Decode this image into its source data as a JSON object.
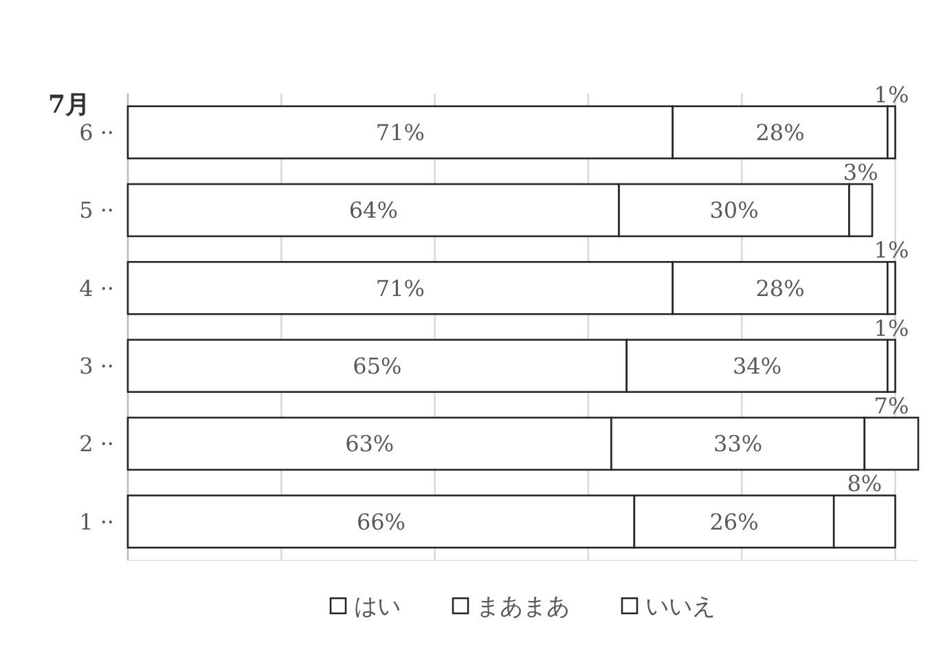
{
  "chart_data": {
    "type": "bar",
    "title": "7月",
    "orientation": "horizontal",
    "stacked": true,
    "categories": [
      "6 ··",
      "5 ··",
      "4 ··",
      "3 ··",
      "2 ··",
      "1 ··"
    ],
    "series": [
      {
        "name": "はい",
        "color": "#ffffff",
        "values": [
          71,
          64,
          71,
          65,
          63,
          66
        ],
        "value_labels": [
          "71%",
          "64%",
          "71%",
          "65%",
          "63%",
          "66%"
        ]
      },
      {
        "name": "まあまあ",
        "color": "#ffffff",
        "values": [
          28,
          30,
          28,
          34,
          33,
          26
        ],
        "value_labels": [
          "28%",
          "30%",
          "28%",
          "34%",
          "33%",
          "26%"
        ]
      },
      {
        "name": "いいえ",
        "color": "#ffffff",
        "values": [
          1,
          3,
          1,
          1,
          7,
          8
        ],
        "value_labels": [
          "1%",
          "3%",
          "1%",
          "1%",
          "7%",
          "8%"
        ]
      }
    ],
    "xlim": [
      0,
      103
    ],
    "xticks": [
      {
        "value": 0,
        "label": null
      },
      {
        "value": 20,
        "label": null
      },
      {
        "value": 40,
        "label": null
      },
      {
        "value": 60,
        "label": null
      },
      {
        "value": 80,
        "label": null
      },
      {
        "value": 100,
        "label": null
      }
    ],
    "grid": "x",
    "tick_labels": "y",
    "legend": "bottom"
  }
}
